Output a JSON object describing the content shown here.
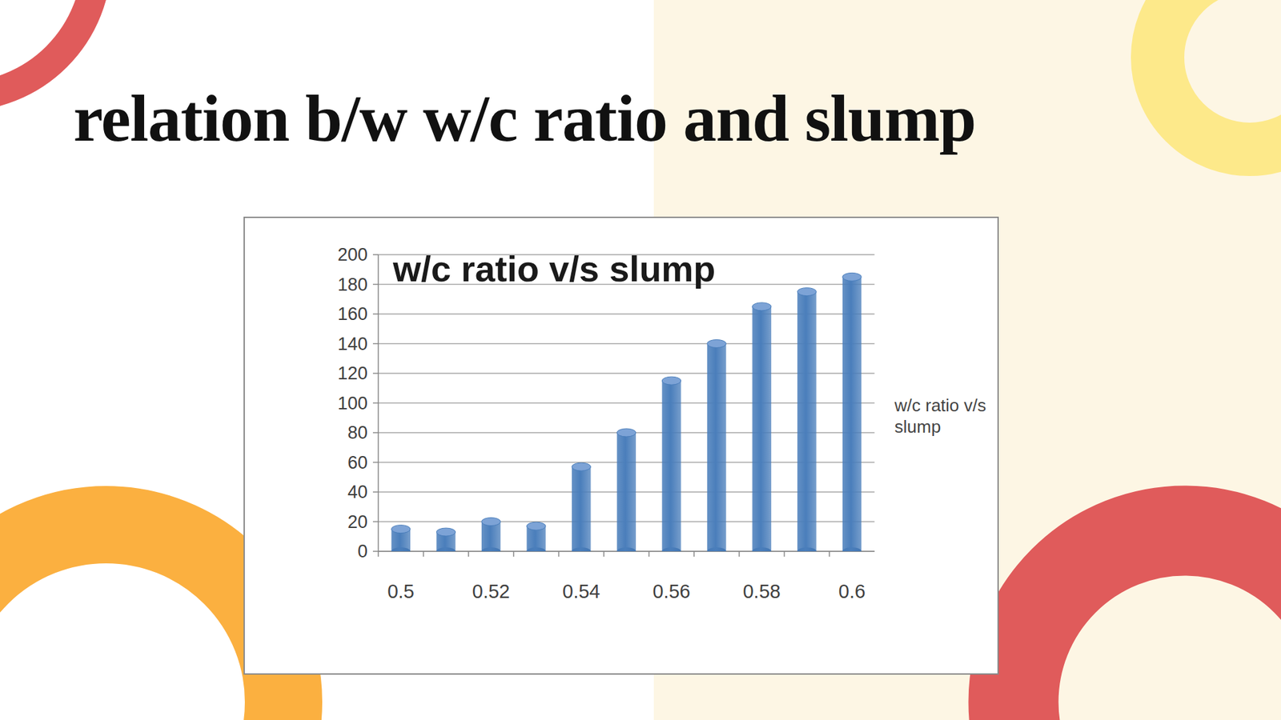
{
  "heading": "relation b/w w/c ratio and slump",
  "chart_data": {
    "type": "bar",
    "title": "w/c ratio v/s slump",
    "categories": [
      "0.5",
      null,
      "0.52",
      null,
      "0.54",
      null,
      "0.56",
      null,
      "0.58",
      null,
      "0.6"
    ],
    "series": [
      {
        "name": "w/c ratio v/s slump",
        "color": "#4a7ebb",
        "values": [
          15,
          13,
          20,
          17,
          57,
          80,
          115,
          140,
          165,
          175,
          185
        ]
      }
    ],
    "ylim": [
      0,
      200
    ],
    "yticks": [
      0,
      20,
      40,
      60,
      80,
      100,
      120,
      140,
      160,
      180,
      200
    ],
    "grid": true,
    "legend": "right"
  }
}
